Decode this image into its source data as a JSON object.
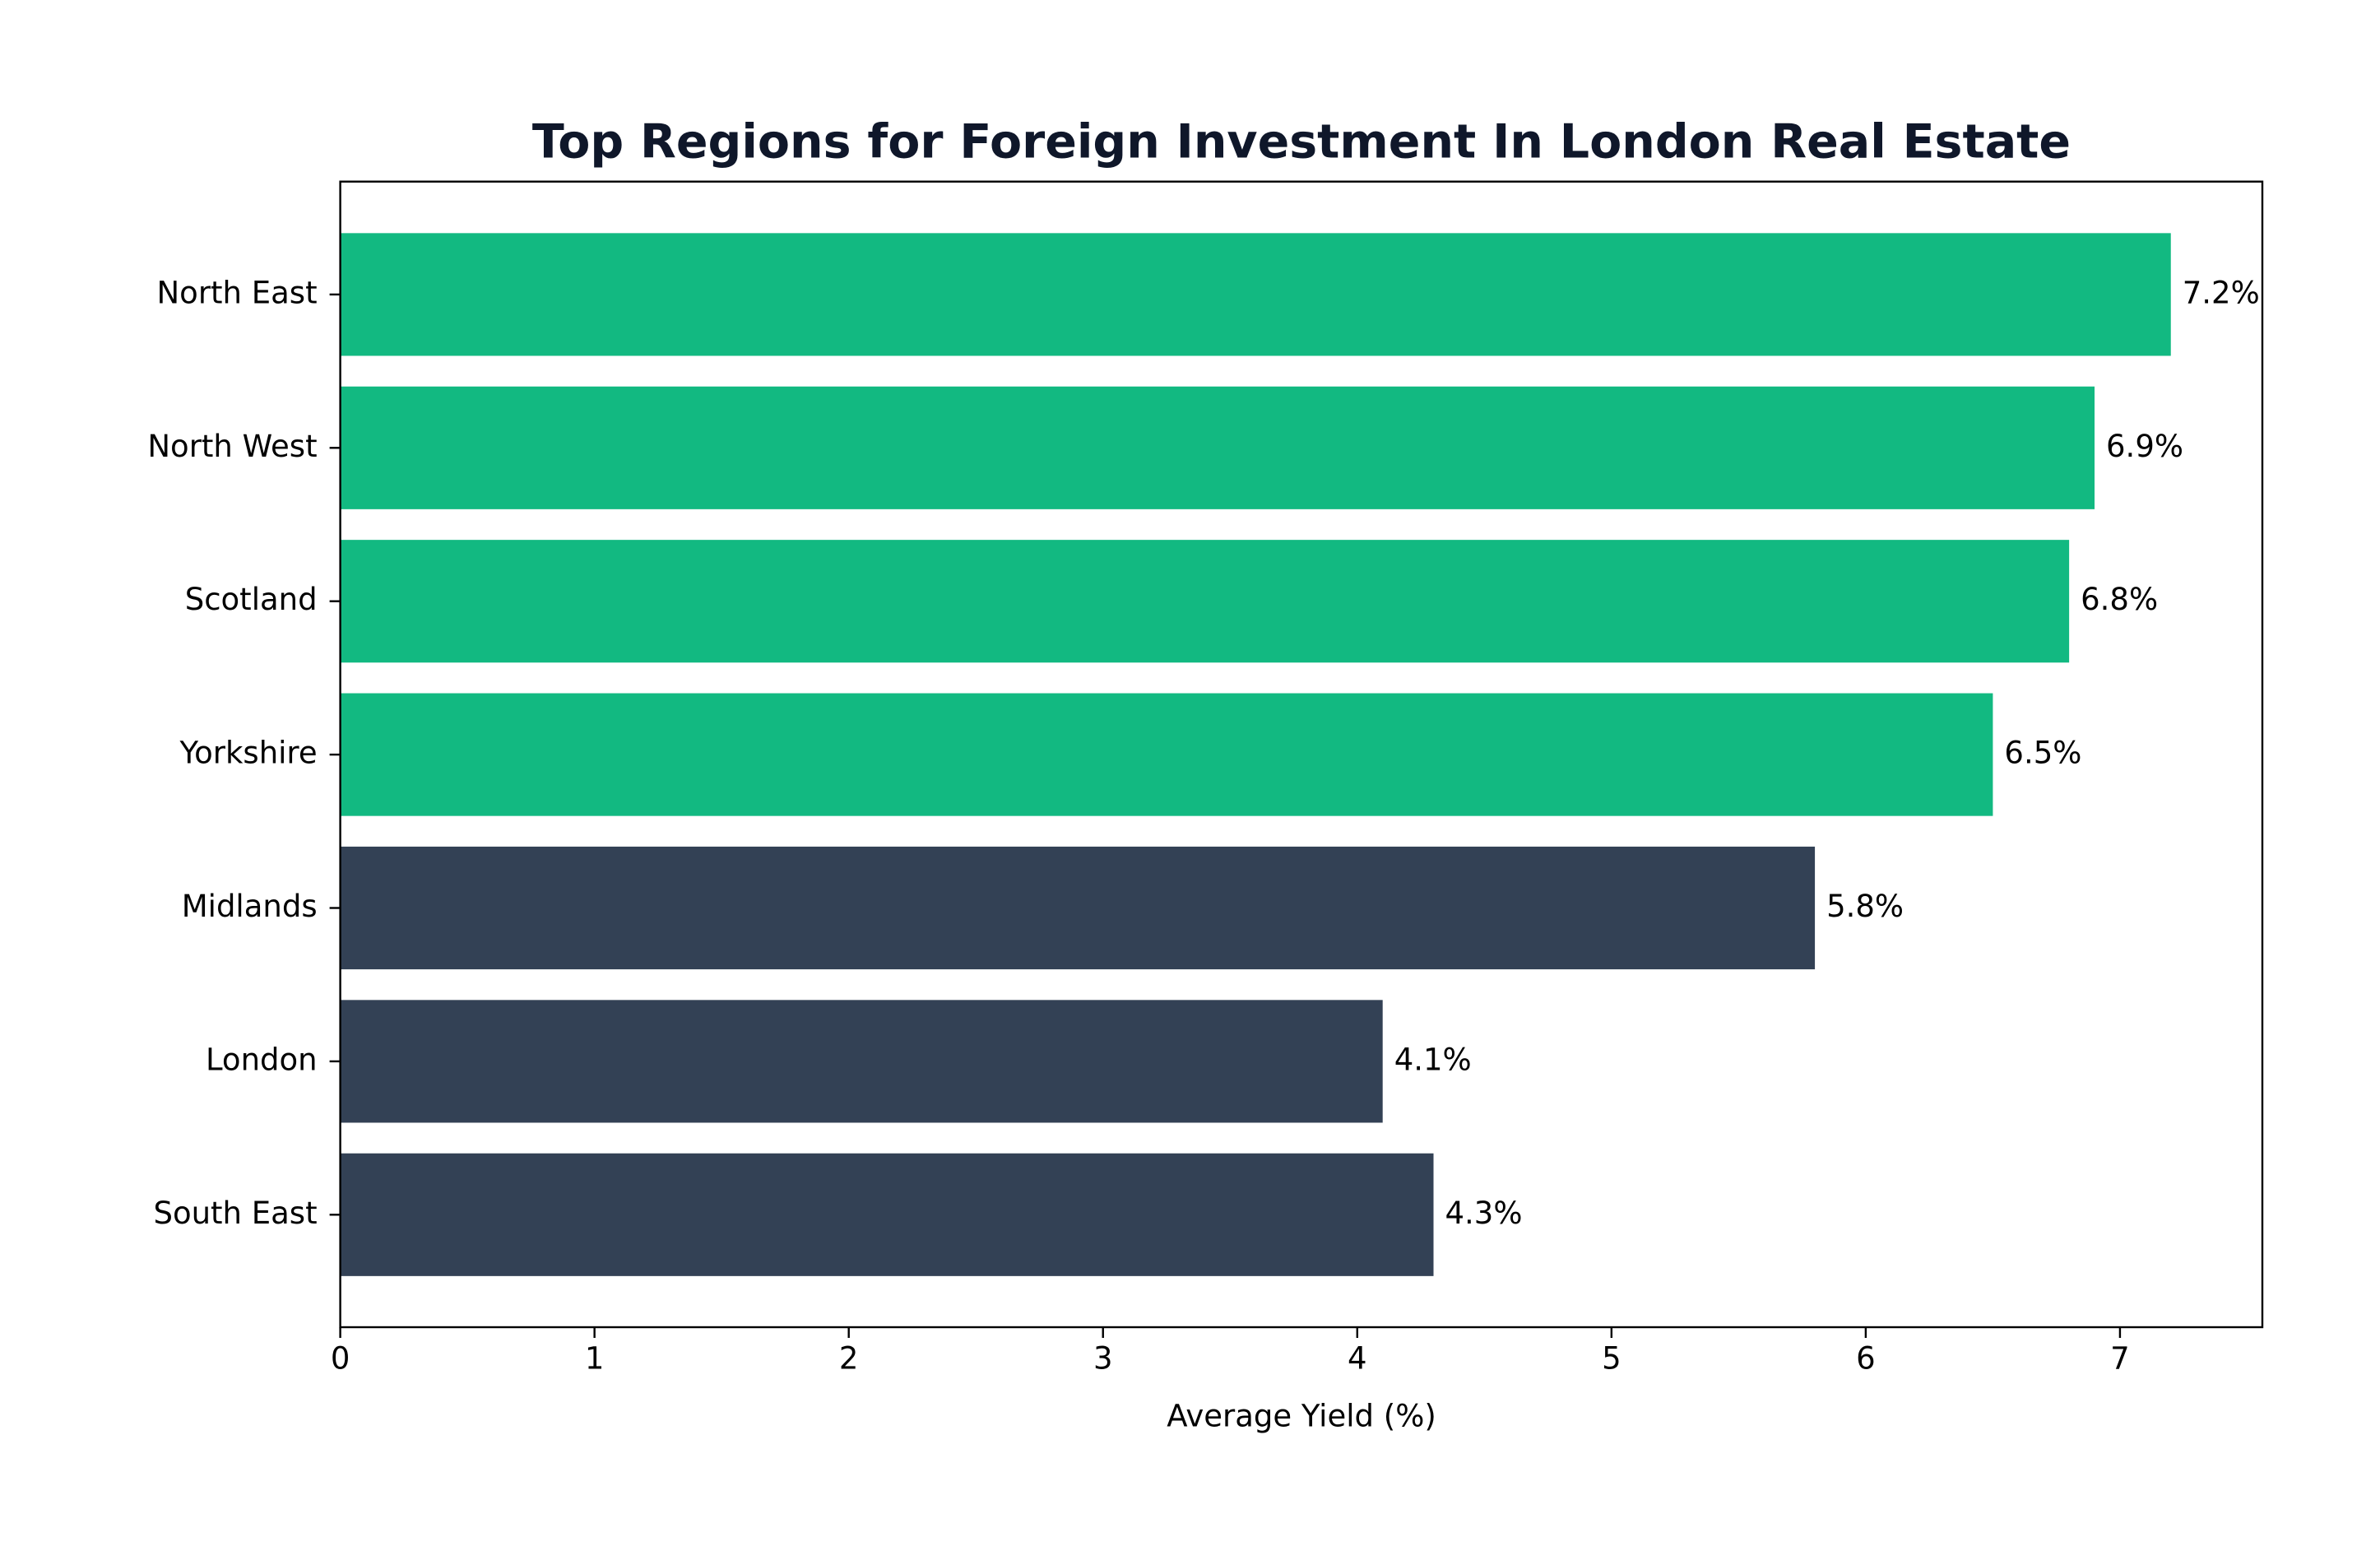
{
  "chart_data": {
    "type": "barh",
    "title": "Top Regions for Foreign Investment In London Real Estate",
    "x_label": "Average Yield (%)",
    "categories": [
      "North East",
      "North West",
      "Scotland",
      "Yorkshire",
      "Midlands",
      "London",
      "South East"
    ],
    "values": [
      7.2,
      6.9,
      6.8,
      6.5,
      5.8,
      4.1,
      4.3
    ],
    "value_labels": [
      "7.2%",
      "6.9%",
      "6.8%",
      "6.5%",
      "5.8%",
      "4.1%",
      "4.3%"
    ],
    "colors": [
      "#12b981",
      "#12b981",
      "#12b981",
      "#12b981",
      "#334155",
      "#334155",
      "#334155"
    ],
    "xlim": [
      0,
      7.56
    ],
    "xticks": [
      0,
      1,
      2,
      3,
      4,
      5,
      6,
      7
    ],
    "grid": false
  }
}
